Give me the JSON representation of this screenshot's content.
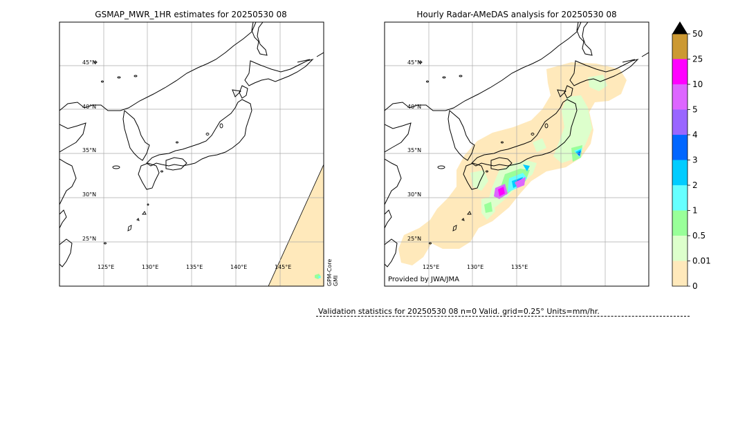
{
  "left_panel": {
    "title": "GSMAP_MWR_1HR estimates for 20250530 08",
    "lat_labels": [
      "45°N",
      "40°N",
      "35°N",
      "30°N",
      "25°N"
    ],
    "lon_labels": [
      "125°E",
      "130°E",
      "135°E",
      "140°E",
      "145°E"
    ],
    "satellite_label_1": "GPM-Core",
    "satellite_label_2": "GMI"
  },
  "right_panel": {
    "title": "Hourly Radar-AMeDAS analysis for 20250530 08",
    "lat_labels": [
      "45°N",
      "40°N",
      "35°N",
      "30°N",
      "25°N"
    ],
    "lon_labels": [
      "125°E",
      "130°E",
      "135°E"
    ],
    "provider": "Provided by JWA/JMA"
  },
  "colorbar": {
    "labels": [
      "50",
      "25",
      "10",
      "5",
      "4",
      "3",
      "2",
      "1",
      "0.5",
      "0.01",
      "0"
    ],
    "colors": [
      "#cc9933",
      "#ff00ff",
      "#dd66ff",
      "#9966ff",
      "#0066ff",
      "#00ccff",
      "#66ffff",
      "#99ff99",
      "#ddffcc",
      "#ffe9bb"
    ],
    "overflow_color": "#000000"
  },
  "validation_text": "Validation statistics for 20250530 08  n=0 Valid. grid=0.25° Units=mm/hr.",
  "map_colors": {
    "land_outline": "#000000",
    "grid": "#aaaaaa",
    "rain_light": "#ffe9bb",
    "rain_0_5": "#ddffcc"
  }
}
